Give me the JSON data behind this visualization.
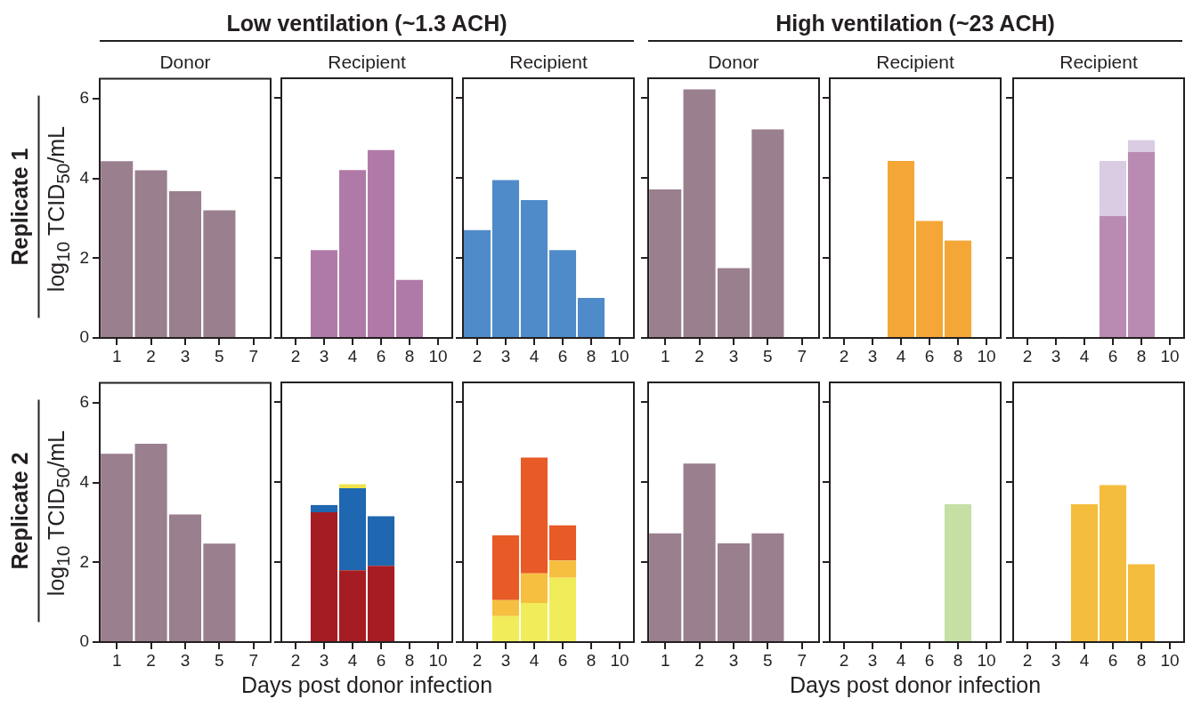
{
  "chart_data": [
    {
      "type": "bar",
      "stacked": true,
      "title": "Donor",
      "subtitle": "Low ventilation (~1.3 ACH)",
      "annotations": [
        "Replicate 1"
      ],
      "ylabel": "log$_{10}$ TCID$_{50}$/mL",
      "categories": [
        "1",
        "2",
        "3",
        "5",
        "7"
      ],
      "series": [
        {
          "color": "#9a7f8f",
          "values": [
            4.43,
            4.2,
            3.68,
            3.2,
            null
          ]
        }
      ],
      "ylim": [
        0,
        6.5
      ],
      "yticks": [
        0,
        2,
        4,
        6
      ]
    },
    {
      "type": "bar",
      "stacked": true,
      "title": "Recipient",
      "categories": [
        "2",
        "3",
        "4",
        "6",
        "8",
        "10"
      ],
      "series": [
        {
          "color": "#b07aa8",
          "values": [
            null,
            2.2,
            4.2,
            4.7,
            1.45,
            null
          ]
        }
      ],
      "ylim": [
        0,
        6.5
      ],
      "yticks": [
        0,
        2,
        4,
        6
      ],
      "tick_labels": "x"
    },
    {
      "type": "bar",
      "stacked": true,
      "title": "Recipient",
      "categories": [
        "2",
        "3",
        "4",
        "6",
        "8",
        "10"
      ],
      "series": [
        {
          "color": "#4f8bc9",
          "values": [
            2.7,
            3.95,
            3.45,
            2.2,
            1.0,
            null
          ]
        }
      ],
      "ylim": [
        0,
        6.5
      ],
      "yticks": [
        0,
        2,
        4,
        6
      ],
      "tick_labels": "x"
    },
    {
      "type": "bar",
      "stacked": true,
      "title": "Donor",
      "subtitle": "High ventilation (~23 ACH)",
      "categories": [
        "1",
        "2",
        "3",
        "5",
        "7"
      ],
      "series": [
        {
          "color": "#9a7f8f",
          "values": [
            3.72,
            6.22,
            1.75,
            5.22,
            null
          ]
        }
      ],
      "ylim": [
        0,
        6.5
      ],
      "yticks": [
        0,
        2,
        4,
        6
      ],
      "tick_labels": "x"
    },
    {
      "type": "bar",
      "stacked": true,
      "title": "Recipient",
      "categories": [
        "2",
        "3",
        "4",
        "6",
        "8",
        "10"
      ],
      "series": [
        {
          "color": "#f4a736",
          "values": [
            null,
            null,
            4.43,
            2.93,
            2.44,
            null
          ]
        }
      ],
      "ylim": [
        0,
        6.5
      ],
      "yticks": [
        0,
        2,
        4,
        6
      ],
      "tick_labels": "x"
    },
    {
      "type": "bar",
      "stacked": true,
      "title": "Recipient",
      "categories": [
        "2",
        "3",
        "4",
        "6",
        "8",
        "10"
      ],
      "series": [
        {
          "color": "#b98bb3",
          "values": [
            null,
            null,
            null,
            3.05,
            4.65,
            null
          ]
        },
        {
          "color": "#d9cce3",
          "values": [
            null,
            null,
            null,
            1.38,
            0.3,
            null
          ]
        }
      ],
      "ylim": [
        0,
        6.5
      ],
      "yticks": [
        0,
        2,
        4,
        6
      ],
      "tick_labels": "x"
    },
    {
      "type": "bar",
      "stacked": true,
      "annotations": [
        "Replicate 2"
      ],
      "ylabel": "log$_{10}$ TCID$_{50}$/mL",
      "categories": [
        "1",
        "2",
        "3",
        "5",
        "7"
      ],
      "series": [
        {
          "color": "#9a7f8f",
          "values": [
            4.72,
            4.97,
            3.2,
            2.47,
            null
          ]
        }
      ],
      "ylim": [
        0,
        6.5
      ],
      "yticks": [
        0,
        2,
        4,
        6
      ]
    },
    {
      "type": "bar",
      "stacked": true,
      "xlabel": "Days post donor infection",
      "categories": [
        "2",
        "3",
        "4",
        "6",
        "8",
        "10"
      ],
      "series": [
        {
          "color": "#a51d23",
          "values": [
            null,
            3.25,
            1.8,
            1.91,
            null,
            null
          ]
        },
        {
          "color": "#1f67b1",
          "values": [
            null,
            0.18,
            2.05,
            1.24,
            null,
            null
          ]
        },
        {
          "color": "#f0e24a",
          "values": [
            null,
            null,
            0.1,
            null,
            null,
            null
          ]
        }
      ],
      "ylim": [
        0,
        6.5
      ],
      "yticks": [
        0,
        2,
        4,
        6
      ],
      "tick_labels": "x"
    },
    {
      "type": "bar",
      "stacked": true,
      "categories": [
        "2",
        "3",
        "4",
        "6",
        "8",
        "10"
      ],
      "series": [
        {
          "color": "#f0ec5a",
          "values": [
            null,
            0.65,
            0.98,
            1.61,
            null,
            null
          ]
        },
        {
          "color": "#f7bf3f",
          "values": [
            null,
            0.4,
            0.74,
            0.43,
            null,
            null
          ]
        },
        {
          "color": "#e85a26",
          "values": [
            null,
            1.62,
            2.9,
            0.88,
            null,
            null
          ]
        }
      ],
      "ylim": [
        0,
        6.5
      ],
      "yticks": [
        0,
        2,
        4,
        6
      ],
      "tick_labels": "x"
    },
    {
      "type": "bar",
      "stacked": true,
      "categories": [
        "1",
        "2",
        "3",
        "5",
        "7"
      ],
      "series": [
        {
          "color": "#9a7f8f",
          "values": [
            2.72,
            4.47,
            2.47,
            2.72,
            null
          ]
        }
      ],
      "ylim": [
        0,
        6.5
      ],
      "yticks": [
        0,
        2,
        4,
        6
      ],
      "tick_labels": "x"
    },
    {
      "type": "bar",
      "stacked": true,
      "xlabel": "Days post donor infection",
      "categories": [
        "2",
        "3",
        "4",
        "6",
        "8",
        "10"
      ],
      "series": [
        {
          "color": "#c5dfa4",
          "values": [
            null,
            null,
            null,
            null,
            3.45,
            null
          ]
        }
      ],
      "ylim": [
        0,
        6.5
      ],
      "yticks": [
        0,
        2,
        4,
        6
      ],
      "tick_labels": "x"
    },
    {
      "type": "bar",
      "stacked": true,
      "categories": [
        "2",
        "3",
        "4",
        "6",
        "8",
        "10"
      ],
      "series": [
        {
          "color": "#f5bd3d",
          "values": [
            null,
            null,
            3.45,
            3.93,
            1.95,
            null
          ]
        }
      ],
      "ylim": [
        0,
        6.5
      ],
      "yticks": [
        0,
        2,
        4,
        6
      ],
      "tick_labels": "x"
    }
  ]
}
